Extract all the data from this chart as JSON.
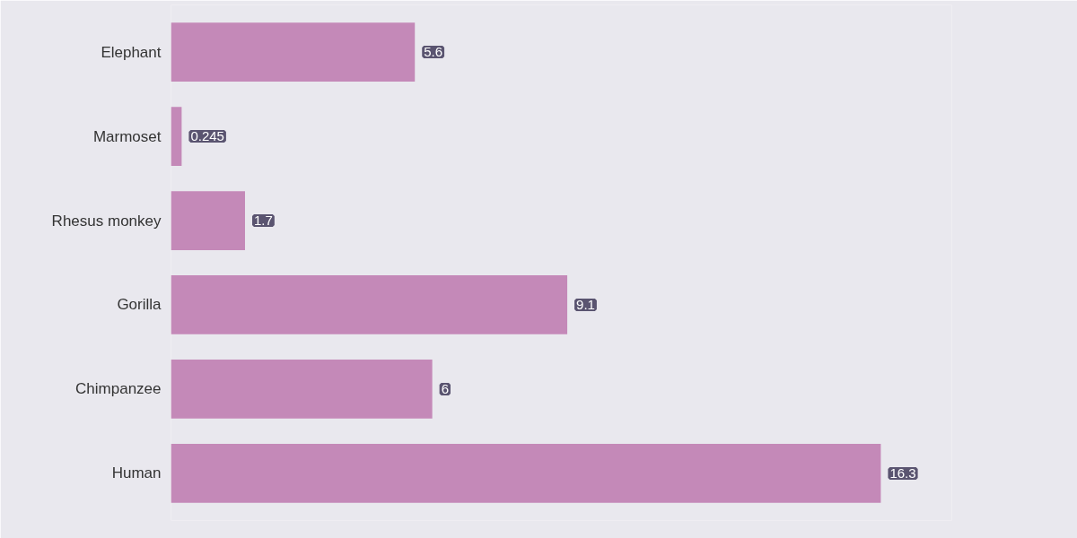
{
  "chart_data": {
    "type": "bar",
    "orientation": "horizontal",
    "categories": [
      "Elephant",
      "Marmoset",
      "Rhesus monkey",
      "Gorilla",
      "Chimpanzee",
      "Human"
    ],
    "values": [
      5.6,
      0.245,
      1.7,
      9.1,
      6,
      16.3
    ],
    "color": "#c489b8",
    "data_labels": true,
    "tick_labels": "y",
    "grid": false
  }
}
